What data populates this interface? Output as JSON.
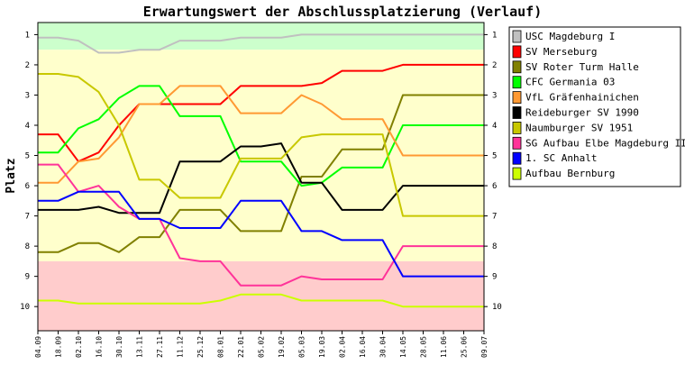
{
  "chart_data": {
    "type": "line",
    "title": "Erwartungswert der Abschlussplatzierung (Verlauf)",
    "xlabel": "",
    "ylabel": "Platz",
    "ylim": [
      0.6,
      10.8
    ],
    "y_inverted": true,
    "yticks": [
      1,
      2,
      3,
      4,
      5,
      6,
      7,
      8,
      9,
      10
    ],
    "grid": false,
    "legend_position": "top-right",
    "zones": [
      {
        "from": 0.5,
        "to": 1.5,
        "color": "#ccffcc"
      },
      {
        "from": 1.5,
        "to": 8.5,
        "color": "#ffffcc"
      },
      {
        "from": 8.5,
        "to": 10.8,
        "color": "#ffcccc"
      }
    ],
    "x": [
      "04.09",
      "18.09",
      "02.10",
      "16.10",
      "30.10",
      "13.11",
      "27.11",
      "11.12",
      "25.12",
      "08.01",
      "22.01",
      "05.02",
      "19.02",
      "05.03",
      "19.03",
      "02.04",
      "16.04",
      "30.04",
      "14.05",
      "28.05",
      "11.06",
      "25.06",
      "09.07"
    ],
    "series": [
      {
        "name": "USC Magdeburg I",
        "color": "#c0c0c0",
        "values": [
          1.1,
          1.1,
          1.2,
          1.6,
          1.6,
          1.5,
          1.5,
          1.2,
          1.2,
          1.2,
          1.1,
          1.1,
          1.1,
          1.0,
          1.0,
          1.0,
          1.0,
          1.0,
          1.0,
          1.0,
          1.0,
          1.0,
          1.0
        ]
      },
      {
        "name": "SV Merseburg",
        "color": "#ff0000",
        "values": [
          4.3,
          4.3,
          5.2,
          4.9,
          4.0,
          3.3,
          3.3,
          3.3,
          3.3,
          3.3,
          2.7,
          2.7,
          2.7,
          2.7,
          2.6,
          2.2,
          2.2,
          2.2,
          2.0,
          2.0,
          2.0,
          2.0,
          2.0
        ]
      },
      {
        "name": "SV Roter Turm Halle",
        "color": "#808000",
        "values": [
          8.2,
          8.2,
          7.9,
          7.9,
          8.2,
          7.7,
          7.7,
          6.8,
          6.8,
          6.8,
          7.5,
          7.5,
          7.5,
          5.7,
          5.7,
          4.8,
          4.8,
          4.8,
          3.0,
          3.0,
          3.0,
          3.0,
          3.0
        ]
      },
      {
        "name": "CFC Germania 03",
        "color": "#00ff00",
        "values": [
          4.9,
          4.9,
          4.1,
          3.8,
          3.1,
          2.7,
          2.7,
          3.7,
          3.7,
          3.7,
          5.2,
          5.2,
          5.2,
          6.0,
          5.9,
          5.4,
          5.4,
          5.4,
          4.0,
          4.0,
          4.0,
          4.0,
          4.0
        ]
      },
      {
        "name": "VfL Gräfenhainichen",
        "color": "#ff9933",
        "values": [
          5.9,
          5.9,
          5.2,
          5.1,
          4.4,
          3.3,
          3.3,
          2.7,
          2.7,
          2.7,
          3.6,
          3.6,
          3.6,
          3.0,
          3.3,
          3.8,
          3.8,
          3.8,
          5.0,
          5.0,
          5.0,
          5.0,
          5.0
        ]
      },
      {
        "name": "Reideburger SV 1990",
        "color": "#000000",
        "values": [
          6.8,
          6.8,
          6.8,
          6.7,
          6.9,
          6.9,
          6.9,
          5.2,
          5.2,
          5.2,
          4.7,
          4.7,
          4.6,
          5.9,
          5.9,
          6.8,
          6.8,
          6.8,
          6.0,
          6.0,
          6.0,
          6.0,
          6.0
        ]
      },
      {
        "name": "Naumburger SV 1951",
        "color": "#c8c800",
        "values": [
          2.3,
          2.3,
          2.4,
          2.9,
          4.0,
          5.8,
          5.8,
          6.4,
          6.4,
          6.4,
          5.1,
          5.1,
          5.1,
          4.4,
          4.3,
          4.3,
          4.3,
          4.3,
          7.0,
          7.0,
          7.0,
          7.0,
          7.0
        ]
      },
      {
        "name": "SG Aufbau Elbe Magdeburg III",
        "color": "#ff3399",
        "values": [
          5.3,
          5.3,
          6.2,
          6.0,
          6.7,
          7.1,
          7.1,
          8.4,
          8.5,
          8.5,
          9.3,
          9.3,
          9.3,
          9.0,
          9.1,
          9.1,
          9.1,
          9.1,
          8.0,
          8.0,
          8.0,
          8.0,
          8.0
        ]
      },
      {
        "name": "1. SC Anhalt",
        "color": "#0000ff",
        "values": [
          6.5,
          6.5,
          6.2,
          6.2,
          6.2,
          7.1,
          7.1,
          7.4,
          7.4,
          7.4,
          6.5,
          6.5,
          6.5,
          7.5,
          7.5,
          7.8,
          7.8,
          7.8,
          9.0,
          9.0,
          9.0,
          9.0,
          9.0
        ]
      },
      {
        "name": "Aufbau Bernburg",
        "color": "#ccff00",
        "values": [
          9.8,
          9.8,
          9.9,
          9.9,
          9.9,
          9.9,
          9.9,
          9.9,
          9.9,
          9.8,
          9.6,
          9.6,
          9.6,
          9.8,
          9.8,
          9.8,
          9.8,
          9.8,
          10.0,
          10.0,
          10.0,
          10.0,
          10.0
        ]
      }
    ]
  }
}
